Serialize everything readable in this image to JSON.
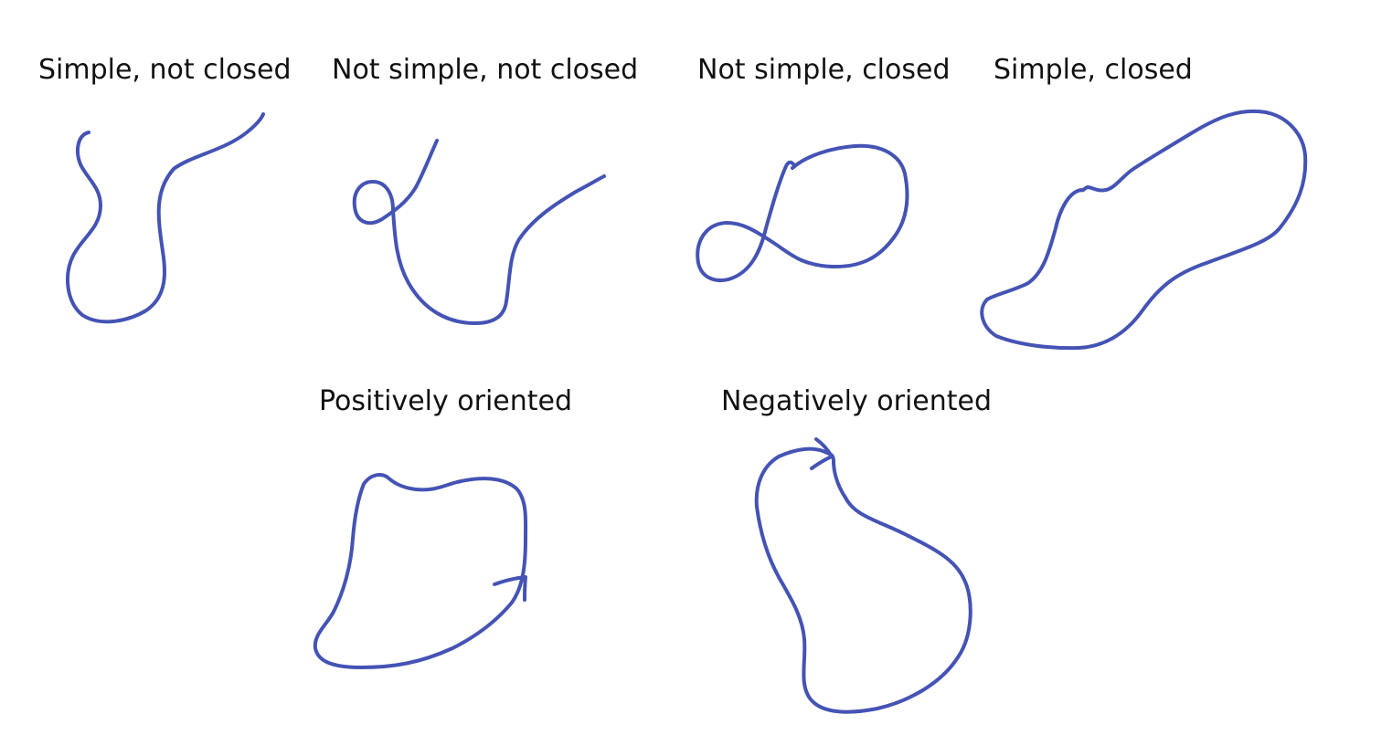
{
  "labels": {
    "simple_not_closed": "Simple, not closed",
    "not_simple_not_closed": "Not simple, not closed",
    "not_simple_closed": "Not simple, closed",
    "simple_closed": "Simple, closed",
    "positively_oriented": "Positively oriented",
    "negatively_oriented": "Negatively oriented"
  },
  "colors": {
    "curve_stroke": "#4453b4",
    "text": "#111111",
    "background": "#ffffff"
  }
}
